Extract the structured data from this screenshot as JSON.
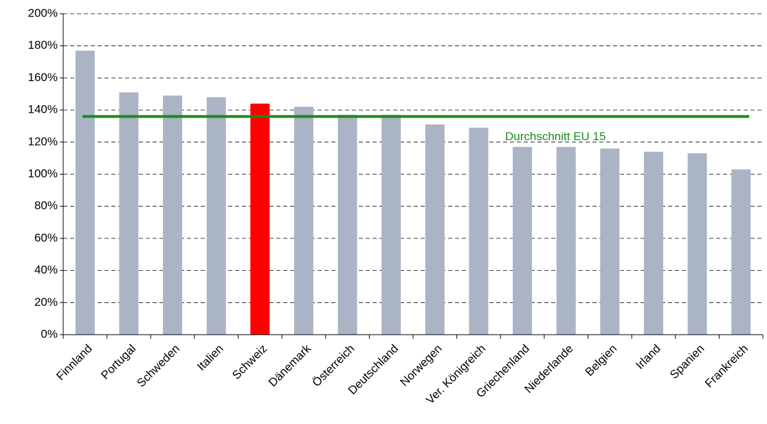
{
  "chart_data": {
    "type": "bar",
    "categories": [
      "Finnland",
      "Portugal",
      "Schweden",
      "Italien",
      "Schweiz",
      "Dänemark",
      "Österreich",
      "Deutschland",
      "Norwegen",
      "Ver. Königreich",
      "Griechenland",
      "Niederlande",
      "Belgien",
      "Irland",
      "Spanien",
      "Frankreich"
    ],
    "values": [
      177,
      151,
      149,
      148,
      144,
      142,
      137,
      137,
      131,
      129,
      117,
      117,
      116,
      114,
      113,
      103
    ],
    "colors": [
      "#aab4c4",
      "#aab4c4",
      "#aab4c4",
      "#aab4c4",
      "#ff0000",
      "#aab4c4",
      "#aab4c4",
      "#aab4c4",
      "#aab4c4",
      "#aab4c4",
      "#aab4c4",
      "#aab4c4",
      "#aab4c4",
      "#aab4c4",
      "#aab4c4",
      "#aab4c4"
    ],
    "ylim": [
      0,
      200
    ],
    "yticks": [
      {
        "value": 0,
        "label": "0%"
      },
      {
        "value": 20,
        "label": "20%"
      },
      {
        "value": 40,
        "label": "40%"
      },
      {
        "value": 60,
        "label": "60%"
      },
      {
        "value": 80,
        "label": "80%"
      },
      {
        "value": 100,
        "label": "100%"
      },
      {
        "value": 120,
        "label": "120%"
      },
      {
        "value": 140,
        "label": "140%"
      },
      {
        "value": 160,
        "label": "160%"
      },
      {
        "value": 180,
        "label": "180%"
      },
      {
        "value": 200,
        "label": "200%"
      }
    ],
    "grid": true,
    "reference_line": {
      "value": 136,
      "label": "Durchschnitt EU 15",
      "color": "#1a8a1a"
    }
  }
}
